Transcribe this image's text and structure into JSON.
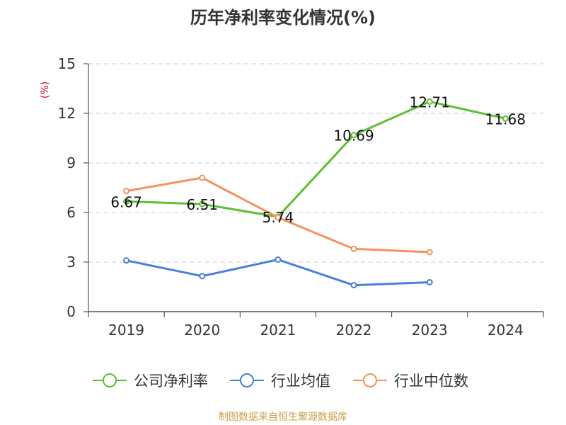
{
  "chart_data": {
    "type": "line",
    "title": "历年净利率变化情况(%)",
    "ylabel": "(%)",
    "xlabel": "",
    "categories": [
      "2019",
      "2020",
      "2021",
      "2022",
      "2023",
      "2024"
    ],
    "y_ticks": [
      "0",
      "3",
      "6",
      "9",
      "12",
      "15"
    ],
    "ylim": [
      0,
      15
    ],
    "grid": "horizontal dashed",
    "legend_position": "bottom",
    "series": [
      {
        "name": "公司净利率",
        "color": "#5cc033",
        "values": [
          6.67,
          6.51,
          5.74,
          10.69,
          12.71,
          11.68
        ],
        "labels": [
          "6.67",
          "6.51",
          "5.74",
          "10.69",
          "12.71",
          "11.68"
        ]
      },
      {
        "name": "行业均值",
        "color": "#4a7fd9",
        "values": [
          3.1,
          2.15,
          3.15,
          1.6,
          1.78,
          null
        ]
      },
      {
        "name": "行业中位数",
        "color": "#f5915a",
        "values": [
          7.3,
          8.1,
          5.7,
          3.8,
          3.6,
          null
        ]
      }
    ]
  },
  "footer": {
    "source": "制图数据来自恒生聚源数据库"
  }
}
